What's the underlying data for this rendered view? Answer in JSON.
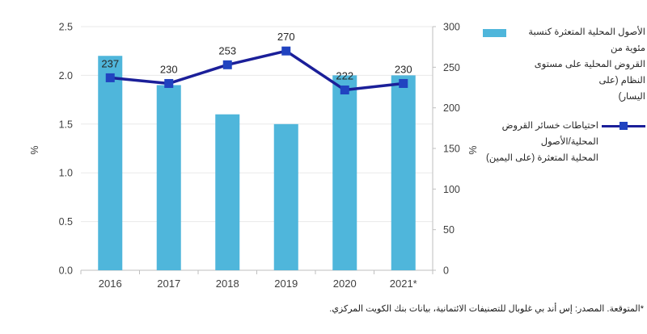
{
  "chart_data": {
    "type": "bar",
    "combo": "bar+line",
    "categories": [
      "2016",
      "2017",
      "2018",
      "2019",
      "2020",
      "2021*"
    ],
    "series": [
      {
        "name": "الأصول المحلية المتعثرة كنسبة مئوية من القروض المحلية على مستوى النظام (على اليسار)",
        "type": "bar",
        "axis": "left",
        "values": [
          2.2,
          1.9,
          1.6,
          1.5,
          2.0,
          2.0
        ],
        "color": "#4FB6DB"
      },
      {
        "name": "احتياطات خسائر القروض المحلية/الأصول المحلية المتعثرة (على اليمين)",
        "type": "line",
        "axis": "right",
        "values": [
          237,
          230,
          253,
          270,
          222,
          230
        ],
        "data_labels": [
          "237",
          "230",
          "253",
          "270",
          "222",
          "230"
        ],
        "color": "#1B1F99",
        "marker_color": "#2143C0"
      }
    ],
    "left_axis": {
      "label": "%",
      "min": 0,
      "max": 2.5,
      "ticks": [
        "0.0",
        "0.5",
        "1.0",
        "1.5",
        "2.0",
        "2.5"
      ]
    },
    "right_axis": {
      "label": "%",
      "min": 0,
      "max": 300,
      "ticks": [
        "0",
        "50",
        "100",
        "150",
        "200",
        "250",
        "300"
      ]
    },
    "grid": "horizontal",
    "legend_position": "right",
    "title": ""
  },
  "legend": {
    "items": [
      {
        "icon": "bar-swatch",
        "color": "#4FB6DB",
        "lines": [
          "الأصول المحلية المتعثرة كنسبة مئوية من",
          "القروض المحلية على مستوى النظام (على",
          "اليسار)"
        ]
      },
      {
        "icon": "line-marker",
        "color": "#1B1F99",
        "marker_color": "#2143C0",
        "lines": [
          "احتياطات خسائر القروض المحلية/الأصول",
          "المحلية المتعثرة (على اليمين)"
        ]
      }
    ]
  },
  "footer": {
    "note": "*المتوقعة. المصدر:  إس أند بي غلوبال للتصنيفات الائتمانية، بيانات بنك الكويت المركزي."
  },
  "colors": {
    "bar": "#4FB6DB",
    "line": "#1B1F99",
    "marker": "#2143C0",
    "gridline": "#E9E9E9",
    "axis": "#BFBFBF",
    "tick_text": "#3F3F3F",
    "label_text": "#262626"
  }
}
